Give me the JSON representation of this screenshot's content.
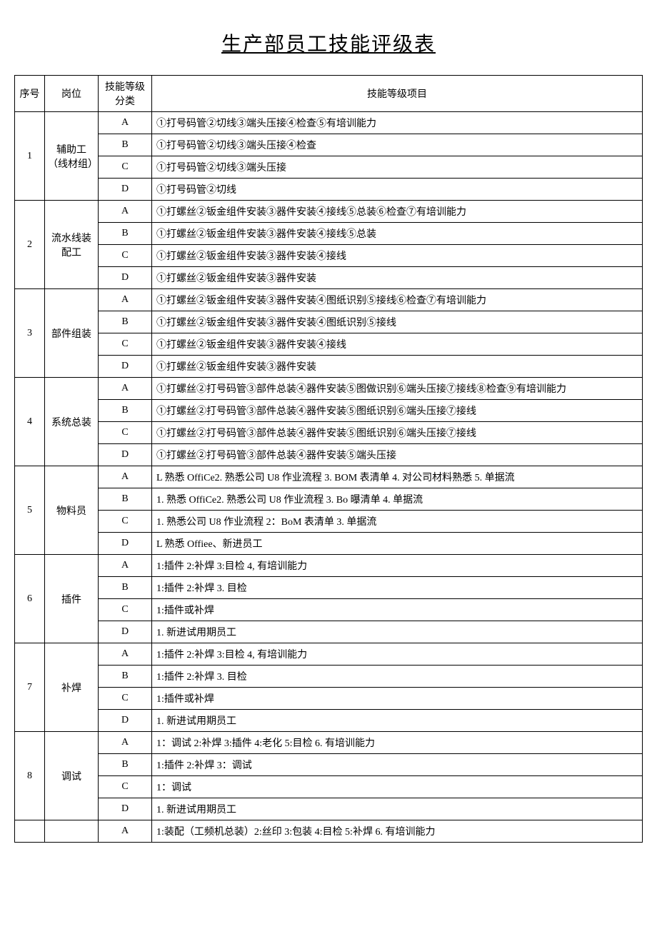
{
  "title": "生产部员工技能评级表",
  "columns": {
    "seq": "序号",
    "position": "岗位",
    "grade_category": "技能等级分类",
    "grade_item": "技能等级项目"
  },
  "colors": {
    "border": "#000000",
    "background": "#ffffff",
    "text": "#000000"
  },
  "fonts": {
    "title_size": 28,
    "body_size": 14,
    "family": "SimSun"
  },
  "groups": [
    {
      "seq": "1",
      "position": "辅助工（线材组）",
      "rows": [
        {
          "grade": "A",
          "desc": "①打号码管②切线③端头压接④检查⑤有培训能力"
        },
        {
          "grade": "B",
          "desc": "①打号码管②切线③端头压接④检查"
        },
        {
          "grade": "C",
          "desc": "①打号码管②切线③端头压接"
        },
        {
          "grade": "D",
          "desc": "①打号码管②切线"
        }
      ]
    },
    {
      "seq": "2",
      "position": "流水线装配工",
      "rows": [
        {
          "grade": "A",
          "desc": "①打螺丝②钣金组件安装③器件安装④接线⑤总装⑥检查⑦有培训能力"
        },
        {
          "grade": "B",
          "desc": "①打螺丝②钣金组件安装③器件安装④接线⑤总装"
        },
        {
          "grade": "C",
          "desc": "①打螺丝②钣金组件安装③器件安装④接线"
        },
        {
          "grade": "D",
          "desc": "①打螺丝②钣金组件安装③器件安装"
        }
      ]
    },
    {
      "seq": "3",
      "position": "部件组装",
      "rows": [
        {
          "grade": "A",
          "desc": "①打螺丝②钣金组件安装③器件安装④图纸识别⑤接线⑥检查⑦有培训能力"
        },
        {
          "grade": "B",
          "desc": "①打螺丝②钣金组件安装③器件安装④图纸识别⑤接线"
        },
        {
          "grade": "C",
          "desc": "①打螺丝②钣金组件安装③器件安装④接线"
        },
        {
          "grade": "D",
          "desc": "①打螺丝②钣金组件安装③器件安装"
        }
      ]
    },
    {
      "seq": "4",
      "position": "系统总装",
      "rows": [
        {
          "grade": "A",
          "desc": "①打螺丝②打号码管③部件总装④器件安装⑤图做识别⑥端头压接⑦接线⑧检查⑨有培训能力"
        },
        {
          "grade": "B",
          "desc": "①打螺丝②打号码管③部件总装④器件安装⑤图纸识别⑥端头压接⑦接线"
        },
        {
          "grade": "C",
          "desc": "①打螺丝②打号码管③部件总装④器件安装⑤图纸识别⑥端头压接⑦接线"
        },
        {
          "grade": "D",
          "desc": "①打螺丝②打号码管③部件总装④器件安装⑤端头压接"
        }
      ]
    },
    {
      "seq": "5",
      "position": "物料员",
      "rows": [
        {
          "grade": "A",
          "desc": "L 熟悉 OffiCe2. 熟悉公司 U8 作业流程 3. BOM 表清单 4. 对公司材料熟悉 5. 单据流"
        },
        {
          "grade": "B",
          "desc": "1. 熟悉 OffiCe2. 熟悉公司 U8 作业流程 3. Bo 曝清单 4. 单据流"
        },
        {
          "grade": "C",
          "desc": "1. 熟悉公司 U8 作业流程 2：BoM 表清单 3. 单据流"
        },
        {
          "grade": "D",
          "desc": "L 熟悉 Offiee、新进员工"
        }
      ]
    },
    {
      "seq": "6",
      "position": "插件",
      "rows": [
        {
          "grade": "A",
          "desc": "1:插件 2:补焊 3:目检 4, 有培训能力"
        },
        {
          "grade": "B",
          "desc": "1:插件 2:补焊 3. 目检"
        },
        {
          "grade": "C",
          "desc": "1:插件或补焊"
        },
        {
          "grade": "D",
          "desc": "1. 新进试用期员工"
        }
      ]
    },
    {
      "seq": "7",
      "position": "补焊",
      "rows": [
        {
          "grade": "A",
          "desc": "1:插件 2:补焊 3:目检 4, 有培训能力"
        },
        {
          "grade": "B",
          "desc": "1:插件 2:补焊 3. 目检"
        },
        {
          "grade": "C",
          "desc": "1:插件或补焊"
        },
        {
          "grade": "D",
          "desc": "1. 新进试用期员工"
        }
      ]
    },
    {
      "seq": "8",
      "position": "调试",
      "rows": [
        {
          "grade": "A",
          "desc": "1：调试 2:补焊 3:插件 4:老化 5:目检 6. 有培训能力"
        },
        {
          "grade": "B",
          "desc": "1:插件 2:补焊 3：调试"
        },
        {
          "grade": "C",
          "desc": "1：调试"
        },
        {
          "grade": "D",
          "desc": "1. 新进试用期员工"
        }
      ]
    },
    {
      "seq": "",
      "position": "",
      "rows": [
        {
          "grade": "A",
          "desc": "1:装配（工频机总装）2:丝印 3:包装 4:目检 5:补焊 6. 有培训能力"
        }
      ]
    }
  ]
}
